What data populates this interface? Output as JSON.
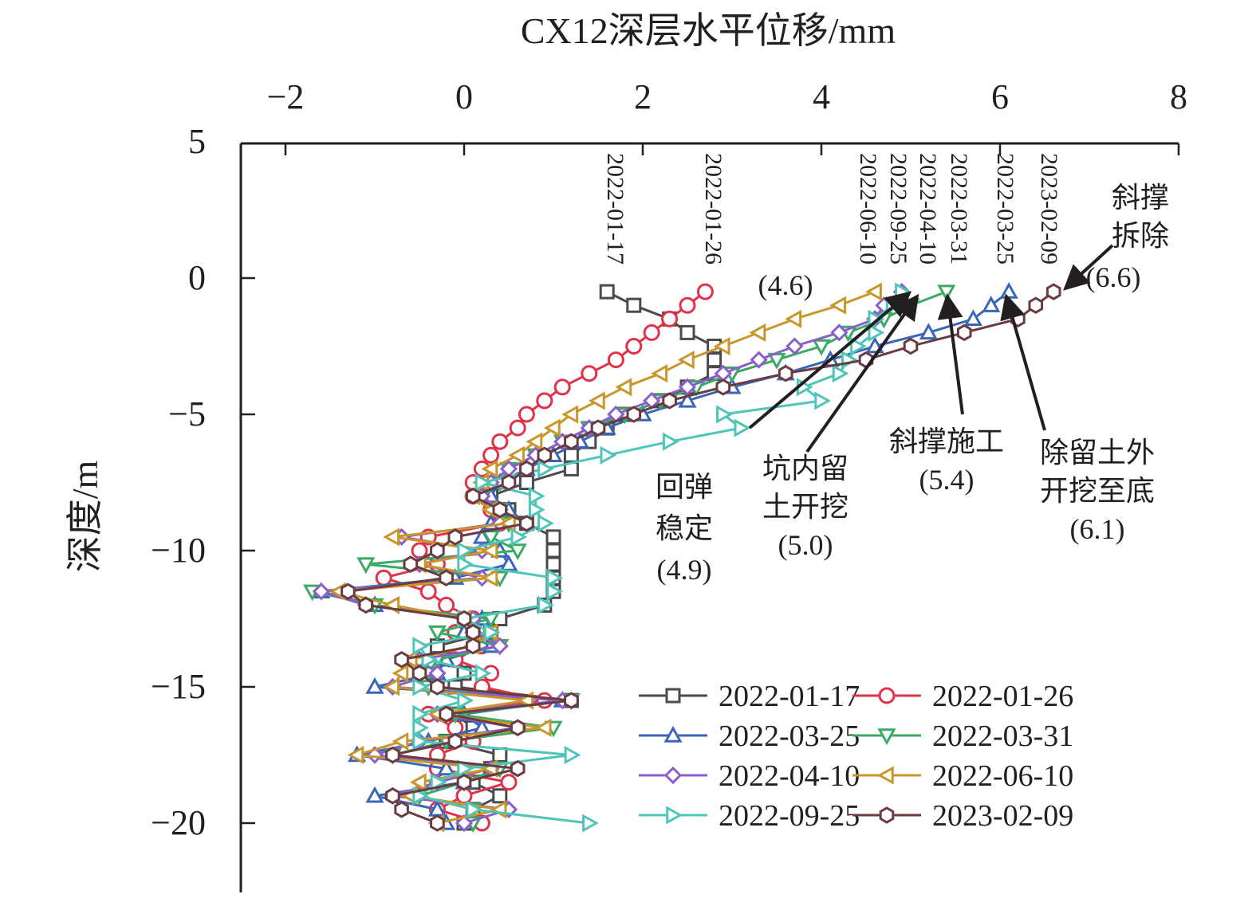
{
  "chart_data": {
    "type": "line",
    "title": "CX12深层水平位移/mm",
    "xlabel": "CX12深层水平位移/mm",
    "ylabel": "深度/m",
    "xlim": [
      -2.5,
      8
    ],
    "ylim": [
      -22.5,
      5
    ],
    "x_ticks": [
      -2,
      0,
      2,
      4,
      6,
      8
    ],
    "x_tick_labels": [
      "−2",
      "0",
      "2",
      "4",
      "6",
      "8"
    ],
    "y_ticks": [
      5,
      0,
      -5,
      -10,
      -15,
      -20
    ],
    "y_tick_labels": [
      "5",
      "0",
      "−5",
      "−10",
      "−15",
      "−20"
    ],
    "grid": false,
    "legend_position": "bottom-right",
    "depths": [
      -0.5,
      -1,
      -1.5,
      -2,
      -2.5,
      -3,
      -3.5,
      -4,
      -4.5,
      -5,
      -5.5,
      -6,
      -6.5,
      -7,
      -7.5,
      -8,
      -8.5,
      -9,
      -9.5,
      -10,
      -10.5,
      -11,
      -11.5,
      -12,
      -12.5,
      -13,
      -13.5,
      -14,
      -14.5,
      -15,
      -15.5,
      -16,
      -16.5,
      -17,
      -17.5,
      -18,
      -18.5,
      -19,
      -19.5,
      -20
    ],
    "series": [
      {
        "name": "2022-01-17",
        "color": "#4a4a4f",
        "marker": "square",
        "values": [
          1.6,
          1.9,
          2.3,
          2.5,
          2.8,
          2.8,
          2.8,
          2.5,
          2.2,
          1.8,
          1.6,
          1.4,
          1.2,
          1.2,
          0.7,
          0.3,
          0.5,
          0.7,
          1.0,
          1.0,
          1.0,
          1.0,
          1.0,
          0.9,
          0.4,
          0.3,
          -0.3,
          -0.1,
          0.0,
          -0.1,
          1.2,
          -0.1,
          0.1,
          -0.2,
          0.4,
          0.3,
          0.1,
          0.4,
          0.1,
          0.0
        ]
      },
      {
        "name": "2022-01-26",
        "color": "#e0334a",
        "marker": "circle",
        "values": [
          2.7,
          2.5,
          2.3,
          2.1,
          1.9,
          1.7,
          1.4,
          1.1,
          0.9,
          0.7,
          0.6,
          0.4,
          0.3,
          0.2,
          0.1,
          0.1,
          0.3,
          0.4,
          -0.4,
          -0.5,
          -0.3,
          -0.9,
          -0.4,
          -0.2,
          0.1,
          -0.1,
          0.2,
          -0.1,
          0.3,
          0.2,
          0.9,
          -0.4,
          -0.1,
          0.1,
          -0.3,
          -0.3,
          0.5,
          0.0,
          -0.3,
          0.2
        ]
      },
      {
        "name": "2022-03-25",
        "color": "#3a66b8",
        "marker": "triangle-up",
        "values": [
          6.1,
          5.9,
          5.7,
          5.2,
          4.6,
          4.1,
          3.6,
          3.0,
          2.5,
          2.0,
          1.6,
          1.3,
          1.0,
          0.7,
          0.4,
          0.3,
          0.5,
          0.3,
          0.2,
          0.4,
          0.5,
          -0.1,
          -1.6,
          -1.0,
          0.2,
          0.0,
          0.3,
          -0.2,
          -0.3,
          -1.0,
          1.1,
          0.0,
          0.2,
          -0.4,
          -1.2,
          -0.2,
          0.0,
          -1.0,
          -0.3,
          -0.2
        ]
      },
      {
        "name": "2022-03-31",
        "color": "#3aaa64",
        "marker": "triangle-down",
        "values": [
          5.4,
          5.0,
          4.7,
          4.3,
          4.0,
          3.5,
          3.0,
          2.6,
          2.2,
          1.8,
          1.4,
          1.1,
          0.8,
          0.5,
          0.4,
          0.2,
          0.4,
          0.5,
          0.3,
          0.6,
          -1.1,
          0.4,
          -1.7,
          -1.0,
          0.3,
          -0.3,
          0.4,
          -0.3,
          -0.4,
          -0.4,
          1.2,
          -0.1,
          1.0,
          -0.2,
          -0.8,
          0.4,
          0.0,
          -0.5,
          0.1,
          0.1
        ]
      },
      {
        "name": "2022-04-10",
        "color": "#8a5fc8",
        "marker": "diamond",
        "values": [
          4.9,
          4.7,
          4.6,
          4.2,
          3.7,
          3.3,
          2.9,
          2.5,
          2.1,
          1.7,
          1.4,
          1.1,
          0.8,
          0.5,
          0.3,
          0.2,
          0.4,
          0.4,
          -0.7,
          0.2,
          -0.5,
          0.2,
          -1.6,
          -1.1,
          0.1,
          0.1,
          0.4,
          -0.5,
          -0.3,
          -0.8,
          1.1,
          -0.3,
          0.6,
          -0.5,
          -1.0,
          0.3,
          -0.3,
          -0.8,
          0.5,
          0.0
        ]
      },
      {
        "name": "2022-06-10",
        "color": "#c8962a",
        "marker": "triangle-left",
        "values": [
          4.6,
          4.2,
          3.7,
          3.3,
          2.9,
          2.5,
          2.2,
          1.8,
          1.5,
          1.2,
          1.0,
          0.8,
          0.6,
          0.3,
          0.2,
          0.1,
          0.3,
          0.5,
          -0.8,
          0.3,
          -0.5,
          0.3,
          -1.4,
          -0.8,
          0.0,
          0.3,
          0.1,
          -0.6,
          -0.7,
          -0.8,
          0.7,
          -0.3,
          0.9,
          -0.7,
          -1.2,
          0.3,
          -0.5,
          -0.6,
          0.4,
          -0.3
        ]
      },
      {
        "name": "2022-09-25",
        "color": "#4fc4b8",
        "marker": "triangle-right",
        "values": [
          4.9,
          4.8,
          4.6,
          4.6,
          4.4,
          4.3,
          4.2,
          3.8,
          4.0,
          2.9,
          3.1,
          2.3,
          1.6,
          0.9,
          0.2,
          0.8,
          0.8,
          0.9,
          0.6,
          0.0,
          0.0,
          1.0,
          1.0,
          0.9,
          0.0,
          0.3,
          -0.5,
          -0.4,
          0.2,
          -0.5,
          0.0,
          -0.5,
          -0.5,
          -0.5,
          1.2,
          0.0,
          -0.3,
          -0.5,
          0.1,
          1.4
        ]
      },
      {
        "name": "2023-02-09",
        "color": "#6a3b40",
        "marker": "hexagon",
        "values": [
          6.6,
          6.4,
          6.2,
          5.6,
          5.0,
          4.5,
          3.6,
          2.9,
          2.3,
          1.9,
          1.5,
          1.2,
          0.9,
          0.7,
          0.5,
          0.1,
          0.4,
          0.7,
          -0.1,
          -0.3,
          -0.6,
          -0.2,
          -1.3,
          -1.1,
          0.0,
          0.1,
          0.1,
          -0.7,
          -0.5,
          -0.3,
          1.2,
          -0.2,
          0.6,
          -0.1,
          -0.8,
          0.6,
          0.0,
          -0.8,
          -0.7,
          -0.3
        ]
      }
    ],
    "annotations": {
      "date_labels": [
        "2022-01-17",
        "2022-01-26",
        "2022-06-10",
        "2022-09-25",
        "2022-04-10",
        "2022-03-31",
        "2022-03-25",
        "2023-02-09"
      ],
      "callouts": [
        {
          "lines": [
            "(4.6)"
          ]
        },
        {
          "lines": [
            "回弹",
            "稳定",
            "(4.9)"
          ]
        },
        {
          "lines": [
            "坑内留",
            "土开挖",
            "(5.0)"
          ]
        },
        {
          "lines": [
            "斜撑施工",
            "(5.4)"
          ]
        },
        {
          "lines": [
            "除留土外",
            "开挖至底",
            "(6.1)"
          ]
        },
        {
          "lines": [
            "斜撑",
            "拆除",
            "(6.6)"
          ]
        }
      ]
    }
  }
}
